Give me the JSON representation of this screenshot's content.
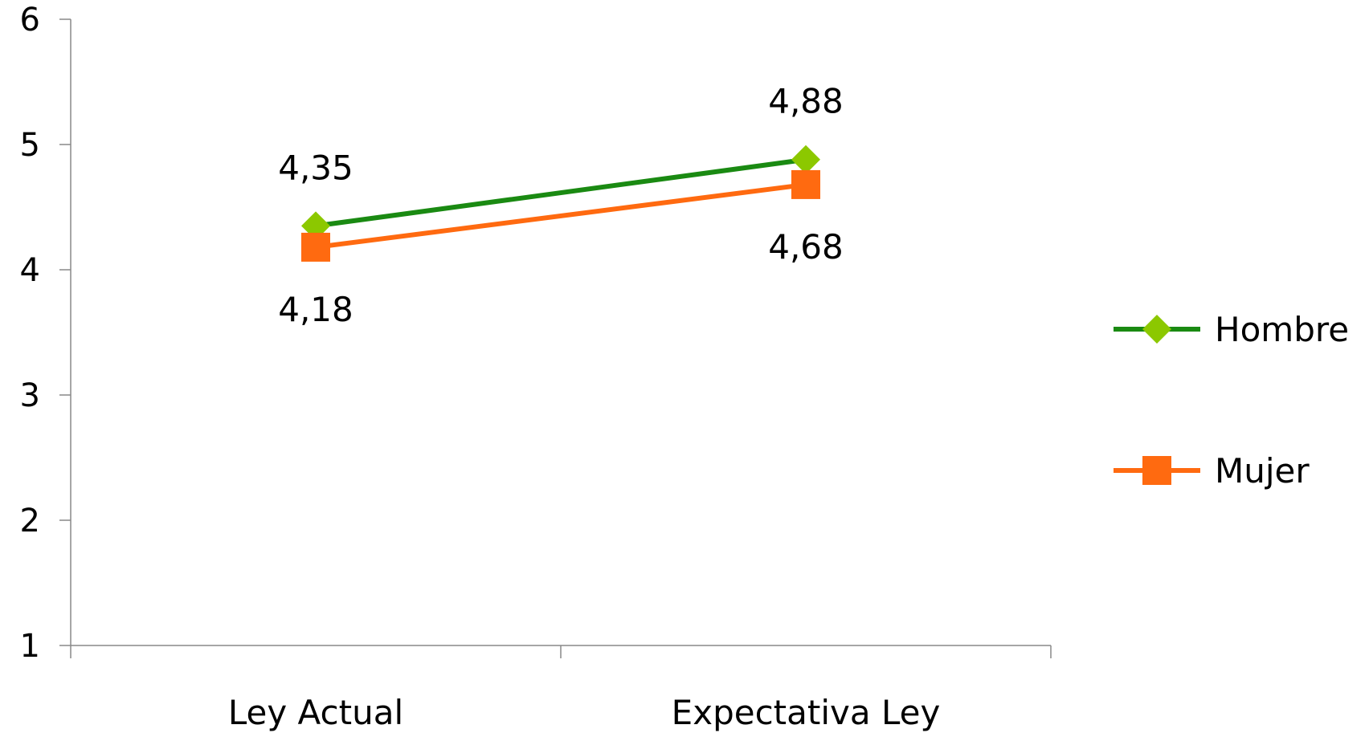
{
  "chart_data": {
    "type": "line",
    "title": "",
    "xlabel": "",
    "ylabel": "",
    "categories": [
      "Ley Actual",
      "Expectativa Ley"
    ],
    "ylim": [
      1,
      6
    ],
    "yticks": [
      "1",
      "2",
      "3",
      "4",
      "5",
      "6"
    ],
    "grid": false,
    "legend_position": "right",
    "series": [
      {
        "name": "Hombre",
        "values": [
          4.35,
          4.88
        ],
        "labels": [
          "4,35",
          "4,88"
        ],
        "line_color": "#1a8a12",
        "marker_color": "#8cc800",
        "marker": "diamond",
        "label_position": "above"
      },
      {
        "name": "Mujer",
        "values": [
          4.18,
          4.68
        ],
        "labels": [
          "4,18",
          "4,68"
        ],
        "line_color": "#ff6a10",
        "marker_color": "#ff6a10",
        "marker": "square",
        "label_position": "below"
      }
    ]
  }
}
